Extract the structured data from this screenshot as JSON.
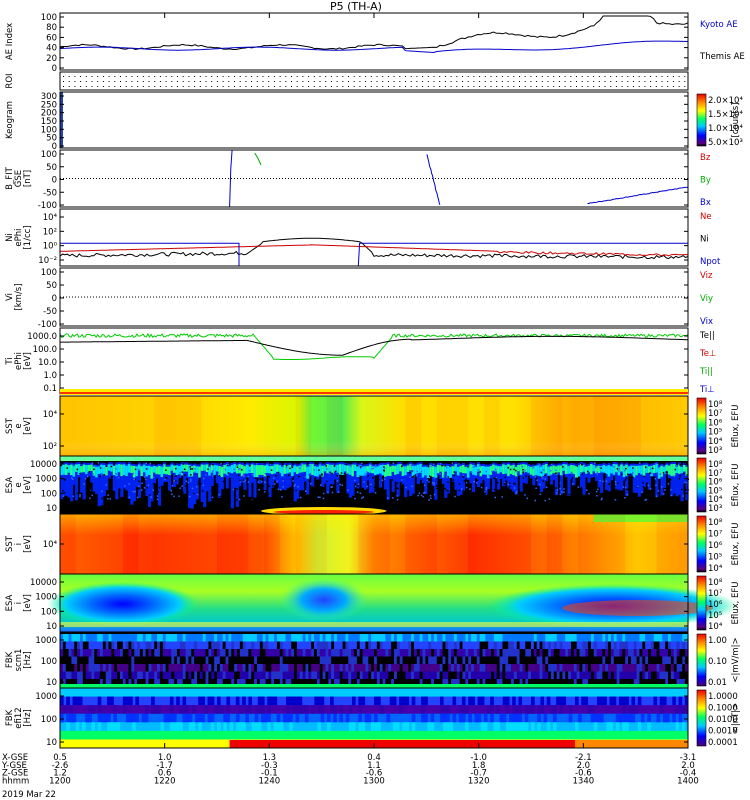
{
  "title": "P5 (TH-A)",
  "date_label": "2019 Mar 22",
  "chart_data": {
    "type": "multi-panel time series / spectrogram stack",
    "x_axis": {
      "rows": [
        {
          "name": "X-GSE",
          "values": [
            "0.5",
            "1.0",
            "1.3",
            "0.4",
            "-1.0",
            "-2.1",
            "-3.1"
          ]
        },
        {
          "name": "Y-GSE",
          "values": [
            "-2.6",
            "-1.7",
            "-0.3",
            "1.1",
            "1.8",
            "2.0",
            "2.0"
          ]
        },
        {
          "name": "Z-GSE",
          "values": [
            "1.2",
            "0.6",
            "-0.1",
            "-0.6",
            "-0.7",
            "-0.6",
            "-0.4"
          ]
        },
        {
          "name": "hhmm",
          "values": [
            "1200",
            "1220",
            "1240",
            "1300",
            "1320",
            "1340",
            "1400"
          ]
        }
      ]
    },
    "panels": [
      {
        "id": "ae",
        "ylabel": "AE Index",
        "ticks": [
          "100",
          "80",
          "60",
          "40",
          "20",
          "0"
        ],
        "legend": [
          {
            "text": "Kyoto AE",
            "color": "#0000cc"
          },
          {
            "text": "Themis AE",
            "color": "#000000"
          }
        ]
      },
      {
        "id": "roi",
        "ylabel": "ROI",
        "ticks": []
      },
      {
        "id": "keogram",
        "ylabel": "Keogram",
        "ticks": [
          "300",
          "250",
          "200",
          "150",
          "100",
          "50",
          "0"
        ],
        "colorbar": {
          "ticks": [
            "2.0×10⁴",
            "1.5×10⁴",
            "1.0×10⁴",
            "5.0×10³"
          ],
          "label": "[counts]"
        }
      },
      {
        "id": "bfit",
        "ylabel": "B_FIT\nGSE\n[nT]",
        "ticks": [
          "100",
          "50",
          "0",
          "-50",
          "-100"
        ],
        "legend": [
          {
            "text": "Bz",
            "color": "#cc0000"
          },
          {
            "text": "By",
            "color": "#00aa00"
          },
          {
            "text": "Bx",
            "color": "#0000cc"
          }
        ]
      },
      {
        "id": "ni",
        "ylabel": "Ni\nePhi\n[1/cc]",
        "ticks": [
          "10⁴",
          "10²",
          "10⁰",
          "10⁻²"
        ],
        "legend": [
          {
            "text": "Ne",
            "color": "#cc0000"
          },
          {
            "text": "Ni",
            "color": "#000000"
          },
          {
            "text": "Npot",
            "color": "#0000cc"
          }
        ]
      },
      {
        "id": "vi",
        "ylabel": "Vi\n[km/s]",
        "ticks": [
          "100",
          "50",
          "0",
          "-50",
          "-100"
        ],
        "legend": [
          {
            "text": "Viz",
            "color": "#cc0000"
          },
          {
            "text": "Viy",
            "color": "#00aa00"
          },
          {
            "text": "Vix",
            "color": "#0000cc"
          }
        ]
      },
      {
        "id": "ti",
        "ylabel": "Ti\nePhi\n[eV]",
        "ticks": [
          "1000.0",
          "100.0",
          "10.0",
          "1.0",
          "0.1"
        ],
        "legend": [
          {
            "text": "Te||",
            "color": "#000000"
          },
          {
            "text": "Te⊥",
            "color": "#cc0000"
          },
          {
            "text": "Ti||",
            "color": "#00aa00"
          },
          {
            "text": "Ti⊥",
            "color": "#0000cc"
          }
        ]
      },
      {
        "id": "sst_e",
        "ylabel": "SST\ne\n[eV]",
        "ticks": [
          "10⁴",
          "10²"
        ],
        "colorbar": {
          "ticks": [
            "10⁸",
            "10⁷",
            "10⁶",
            "10⁵",
            "10⁴",
            "10³"
          ],
          "label": "Eflux, EFU"
        }
      },
      {
        "id": "esa_e",
        "ylabel": "ESA\ne\n[eV]",
        "ticks": [
          "10000",
          "1000",
          "100",
          "10"
        ],
        "colorbar": {
          "ticks": [
            "10⁸",
            "10⁷",
            "10⁶",
            "10⁵",
            "10⁴",
            "10³"
          ],
          "label": "Eflux, EFU"
        }
      },
      {
        "id": "sst_i",
        "ylabel": "SST\ni\n[eV]",
        "ticks": [
          "10⁴"
        ],
        "colorbar": {
          "ticks": [
            "10⁸",
            "10⁷",
            "10⁶",
            "10⁵",
            "10⁴"
          ],
          "label": "Eflux, EFU"
        }
      },
      {
        "id": "esa_i",
        "ylabel": "ESA\ni\n[eV]",
        "ticks": [
          "10000",
          "1000",
          "100",
          "10"
        ],
        "colorbar": {
          "ticks": [
            "10⁸",
            "10⁷",
            "10⁶",
            "10⁵",
            "10⁴"
          ],
          "label": "Eflux, EFU"
        }
      },
      {
        "id": "fbk_b",
        "ylabel": "FBK\nscm1\n[Hz]",
        "ticks": [
          "1000",
          "100",
          "10"
        ],
        "colorbar": {
          "ticks": [
            "1.00",
            "0.10",
            "0.01"
          ],
          "label": "<|mV/m|>"
        }
      },
      {
        "id": "fbk_e",
        "ylabel": "FBK\nefi12\n[Hz]",
        "ticks": [
          "1000",
          "100",
          "10"
        ],
        "colorbar": {
          "ticks": [
            "1.0000",
            "0.1000",
            "0.0100",
            "0.0010",
            "0.0001"
          ],
          "label": "<|nT|>"
        }
      }
    ]
  }
}
